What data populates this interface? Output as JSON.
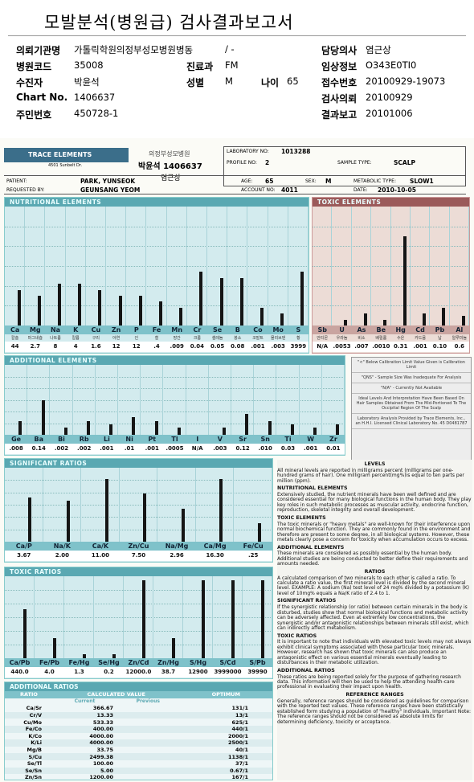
{
  "header": {
    "title": "모발분석(병원급) 검사결과보고서",
    "rows": [
      [
        {
          "label": "의뢰기관명",
          "value": "가톨릭학원의정부성모병원병동"
        },
        {
          "value": "/ -"
        },
        {
          "label": "담당의사",
          "value": "염근상"
        }
      ],
      [
        {
          "label": "병원코드",
          "value": "35008"
        },
        {
          "label": "진료과",
          "value": "FM"
        },
        {
          "label": "임상정보",
          "value": "O343E0TI0"
        }
      ],
      [
        {
          "label": "수진자",
          "value": "박윤석"
        },
        {
          "label": "성별",
          "value": "M"
        },
        {
          "label": "나이",
          "value": "65"
        },
        {
          "label": "접수번호",
          "value": "20100929-19073"
        }
      ],
      [
        {
          "label": "Chart No.",
          "value": "1406637"
        },
        {
          "label": "검사의뢰",
          "value": "20100929"
        }
      ],
      [
        {
          "label": "주민번호",
          "value": "450728-1"
        },
        {
          "label": "결과보고",
          "value": "20101006"
        }
      ]
    ]
  },
  "report": {
    "logo": "TRACE ELEMENTS",
    "logo_address": "4501 Sunbelt Dr.",
    "handwritten": [
      "의정부성모병원",
      "박윤석 1406637",
      "염근상"
    ],
    "info": [
      {
        "label": "LABORATORY NO:",
        "value": "1013288"
      },
      {
        "label": "PROFILE NO:",
        "value": "2"
      },
      {
        "label": "SAMPLE TYPE:",
        "value": "SCALP"
      },
      {
        "label": "PATIENT:",
        "value": "PARK, YUNSEOK"
      },
      {
        "label": "AGE:",
        "value": "65"
      },
      {
        "label": "SEX:",
        "value": "M"
      },
      {
        "label": "METABOLIC TYPE:",
        "value": "SLOW1"
      },
      {
        "label": "REQUESTED BY:",
        "value": "GEUNSANG YEOM"
      },
      {
        "label": "ACCOUNT NO:",
        "value": "4011"
      },
      {
        "label": "DATE:",
        "value": "2010-10-05"
      }
    ],
    "nutritional_elements": {
      "title": "NUTRITIONAL ELEMENTS",
      "elements": [
        "Ca",
        "Mg",
        "Na",
        "K",
        "Cu",
        "Zn",
        "P",
        "Fe",
        "Mn",
        "Cr",
        "Se",
        "B",
        "Co",
        "Mo",
        "S"
      ],
      "korean": [
        "칼슘",
        "마그네슘",
        "나트륨",
        "칼륨",
        "구리",
        "아연",
        "인",
        "철",
        "망간",
        "크롬",
        "셀레늄",
        "붕소",
        "코발트",
        "몰리브덴",
        "황"
      ],
      "values": [
        "44",
        "2.7",
        "8",
        "4",
        "1.6",
        "12",
        "12",
        ".4",
        ".009",
        "0.04",
        "0.05",
        "0.08",
        ".001",
        ".003",
        "3999"
      ]
    },
    "toxic_elements": {
      "title": "TOXIC ELEMENTS",
      "elements": [
        "Sb",
        "U",
        "As",
        "Be",
        "Hg",
        "Cd",
        "Pb",
        "Al"
      ],
      "korean": [
        "안티몬",
        "우라늄",
        "비소",
        "베릴륨",
        "수은",
        "카드뮴",
        "납",
        "알루미늄"
      ],
      "values": [
        "N/A",
        ".0053",
        ".007",
        ".0010",
        "0.31",
        ".001",
        "0.10",
        "0.6"
      ]
    },
    "additional_elements": {
      "title": "ADDITIONAL ELEMENTS",
      "elements": [
        "Ge",
        "Ba",
        "Bi",
        "Rb",
        "Li",
        "Ni",
        "Pt",
        "Tl",
        "I",
        "V",
        "Sr",
        "Sn",
        "Ti",
        "W",
        "Zr"
      ],
      "values": [
        ".008",
        "0.14",
        ".002",
        ".002",
        ".001",
        ".01",
        ".001",
        ".0005",
        "N/A",
        ".003",
        "0.12",
        ".010",
        "0.03",
        ".001",
        "0.01"
      ]
    },
    "significant_ratios": {
      "title": "SIGNIFICANT RATIOS",
      "elements": [
        "Ca/P",
        "Na/K",
        "Ca/K",
        "Zn/Cu",
        "Na/Mg",
        "Ca/Mg",
        "Fe/Cu"
      ],
      "values": [
        "3.67",
        "2.00",
        "11.00",
        "7.50",
        "2.96",
        "16.30",
        ".25"
      ]
    },
    "toxic_ratios": {
      "title": "TOXIC RATIOS",
      "elements": [
        "Ca/Pb",
        "Fe/Pb",
        "Fe/Hg",
        "Se/Hg",
        "Zn/Cd",
        "Zn/Hg",
        "S/Hg",
        "S/Cd",
        "S/Pb"
      ],
      "values": [
        "440.0",
        "4.0",
        "1.3",
        "0.2",
        "12000.0",
        "38.7",
        "12900",
        "3999000",
        "39990"
      ]
    },
    "additional_ratios": {
      "title": "ADDITIONAL RATIOS",
      "columns": [
        "RATIO",
        "CALCULATED VALUE",
        "OPTIMUM"
      ],
      "subcolumns": [
        "Current",
        "Previous"
      ],
      "rows": [
        [
          "Ca/Sr",
          "366.67",
          "131/1"
        ],
        [
          "Cr/V",
          "13.33",
          "13/1"
        ],
        [
          "Cu/Mo",
          "533.33",
          "625/1"
        ],
        [
          "Fe/Co",
          "400.00",
          "440/1"
        ],
        [
          "K/Co",
          "4000.00",
          "2000/1"
        ],
        [
          "K/Li",
          "4000.00",
          "2500/1"
        ],
        [
          "Mg/B",
          "33.75",
          "40/1"
        ],
        [
          "S/Cu",
          "2499.38",
          "1138/1"
        ],
        [
          "Se/Tl",
          "100.00",
          "37/1"
        ],
        [
          "Se/Sn",
          "5.00",
          "0.67/1"
        ],
        [
          "Zn/Sn",
          "1200.00",
          "167/1"
        ]
      ]
    },
    "legend_notes": [
      "\"<\" Below Calibration Limit Value Given is Calibration Limit",
      "\"QNS\" - Sample Size Was Inadequate For Analysis",
      "\"N/A\" - Currently Not Available",
      "Ideal Levels And Interpretation Have Been Based On Hair Samples Obtained From The Mid-Portioned To The Occipital Region Of The Scalp",
      "Laboratory Analysis Provided by Trace Elements, Inc., an H.H.I. Licensed Clinical Laboratory No. 45 D0481787"
    ],
    "legend_date": "2010-10-05",
    "text_panel": [
      {
        "heading": "LEVELS",
        "body": "All mineral levels are reported in milligrams percent (milligrams per one-hundred grams of hair). One milligram percent(mg%)is equal to ten parts per million (ppm)."
      },
      {
        "heading": "NUTRITIONAL ELEMENTS",
        "body": "Extensively studied, the nutrient minerals have been well defined and are considered essential for many biological functions in the human body. They play key roles in such metabolic processes as muscular activity, endocrine function, reproduction, skeletal integrity and overall development."
      },
      {
        "heading": "TOXIC ELEMENTS",
        "body": "The toxic minerals or \"heavy metals\" are well-known for their interference upon normal biochemical function. They are commonly found in the environment and therefore are present to some degree, in all biological systems. However, these metals clearly pose a concern for toxicity when accumulation occurs to excess."
      },
      {
        "heading": "ADDITIONAL ELEMENTS",
        "body": "These minerals are considered as possibly essential by the human body. Additional studies are being conducted to better define their requirements and amounts needed."
      },
      {
        "heading": "RATIOS",
        "body": "A calculated comparison of two minerals to each other is called a ratio. To calculate a ratio value, the first mineral level is divided by the second mineral level. EXAMPLE: A sodium (Na) test level of 24 mg% divided by a potassium (K) level of 10mg% equals a Na/K ratio of 2.4 to 1."
      },
      {
        "heading": "SIGNIFICANT RATIOS",
        "body": "If the synergistic relationship (or ratio) between certain minerals in the body is disturbed, studies show that normal biological functions and metabolic activity can be adversely affected. Even at extremely low concentrations, the synergistic and/or antagonistic relationships between minerals still exist, which can indirectly affect metabolism."
      },
      {
        "heading": "TOXIC RATIOS",
        "body": "It is important to note that individuals with elevated toxic levels may not always exhibit clinical symptoms associated with those particular toxic minerals. However, research has shown that toxic minerals can also produce an antagonistic effect on various essential minerals eventually leading to disturbances in their metabolic utilization."
      },
      {
        "heading": "ADDITIONAL RATIOS",
        "body": "These ratios are being reported solely for the purpose of gathering research data. This information will then be used to help the attending health-care professional in evaluating their impact upon health."
      },
      {
        "heading": "REFERENCE RANGES",
        "body": "Generally, reference ranges should be considered as guidelines for comparison with the reported test values. These reference ranges have been statistically established form studying a population of \"healthy\" individuals. Important Note: The reference ranges should not be considered as absolute limits for determining deficiency, toxicity or acceptance."
      }
    ]
  }
}
